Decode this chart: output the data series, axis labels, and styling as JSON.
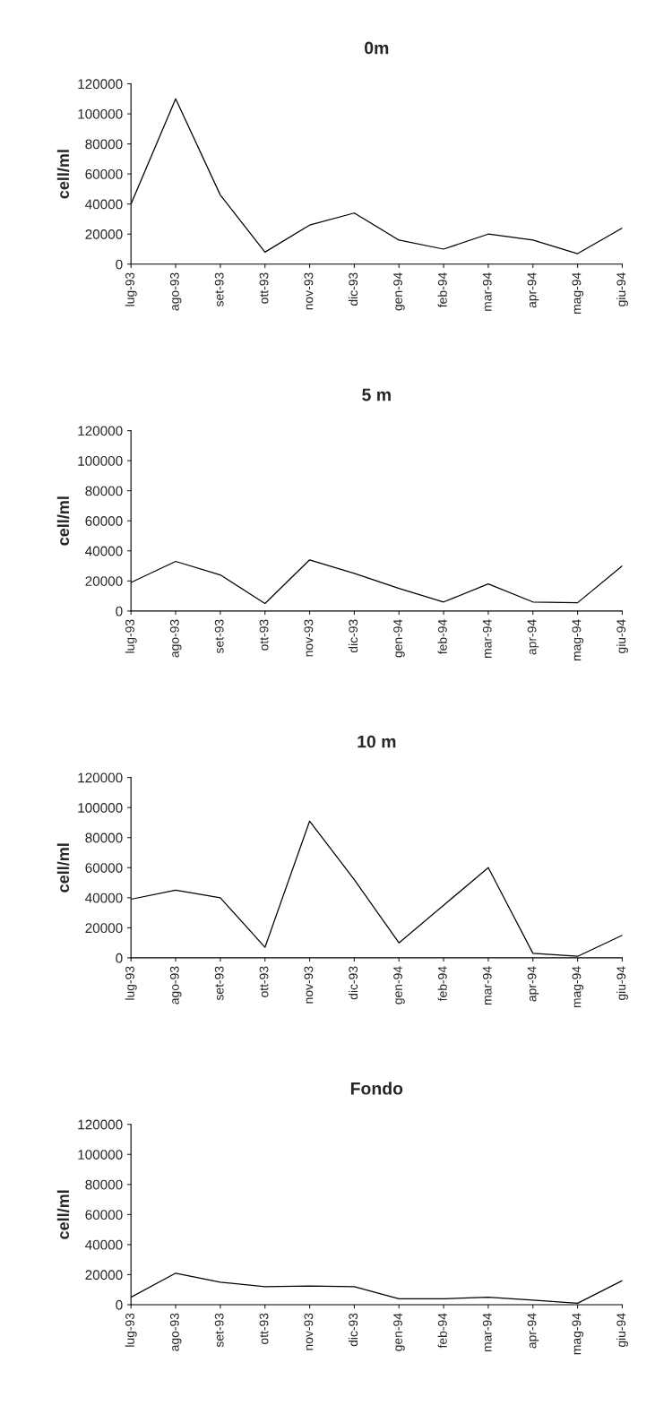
{
  "chart_data": [
    {
      "type": "line",
      "title": "0m",
      "ylabel": "cell/ml",
      "categories": [
        "lug-93",
        "ago-93",
        "set-93",
        "ott-93",
        "nov-93",
        "dic-93",
        "gen-94",
        "feb-94",
        "mar-94",
        "apr-94",
        "mag-94",
        "giu-94"
      ],
      "series": [
        {
          "color": "#000000",
          "values": [
            40000,
            110000,
            46000,
            8000,
            26000,
            34000,
            16000,
            10000,
            20000,
            16000,
            7000,
            24000
          ]
        }
      ],
      "ylim": [
        0,
        120000
      ],
      "yticks": [
        0,
        20000,
        40000,
        60000,
        80000,
        100000,
        120000
      ],
      "grid": false,
      "legend": false
    },
    {
      "type": "line",
      "title": "5 m",
      "ylabel": "cell/ml",
      "categories": [
        "lug-93",
        "ago-93",
        "set-93",
        "ott-93",
        "nov-93",
        "dic-93",
        "gen-94",
        "feb-94",
        "mar-94",
        "apr-94",
        "mag-94",
        "giu-94"
      ],
      "series": [
        {
          "color": "#000000",
          "values": [
            19000,
            33000,
            24000,
            5000,
            34000,
            25000,
            15000,
            6000,
            18000,
            6000,
            5500,
            30000
          ]
        }
      ],
      "ylim": [
        0,
        120000
      ],
      "yticks": [
        0,
        20000,
        40000,
        60000,
        80000,
        100000,
        120000
      ],
      "grid": false,
      "legend": false
    },
    {
      "type": "line",
      "title": "10 m",
      "ylabel": "cell/ml",
      "categories": [
        "lug-93",
        "ago-93",
        "set-93",
        "ott-93",
        "nov-93",
        "dic-93",
        "gen-94",
        "feb-94",
        "mar-94",
        "apr-94",
        "mag-94",
        "giu-94"
      ],
      "series": [
        {
          "color": "#000000",
          "values": [
            39000,
            45000,
            40000,
            7000,
            91000,
            52000,
            10000,
            35000,
            60000,
            3000,
            1000,
            15000
          ]
        }
      ],
      "ylim": [
        0,
        120000
      ],
      "yticks": [
        0,
        20000,
        40000,
        60000,
        80000,
        100000,
        120000
      ],
      "grid": false,
      "legend": false
    },
    {
      "type": "line",
      "title": "Fondo",
      "ylabel": "cell/ml",
      "categories": [
        "lug-93",
        "ago-93",
        "set-93",
        "ott-93",
        "nov-93",
        "dic-93",
        "gen-94",
        "feb-94",
        "mar-94",
        "apr-94",
        "mag-94",
        "giu-94"
      ],
      "series": [
        {
          "color": "#000000",
          "values": [
            5000,
            21000,
            15000,
            12000,
            12500,
            12000,
            4000,
            4000,
            5000,
            3000,
            1000,
            16000
          ]
        }
      ],
      "ylim": [
        0,
        120000
      ],
      "yticks": [
        0,
        20000,
        40000,
        60000,
        80000,
        100000,
        120000
      ],
      "grid": false,
      "legend": false
    }
  ]
}
